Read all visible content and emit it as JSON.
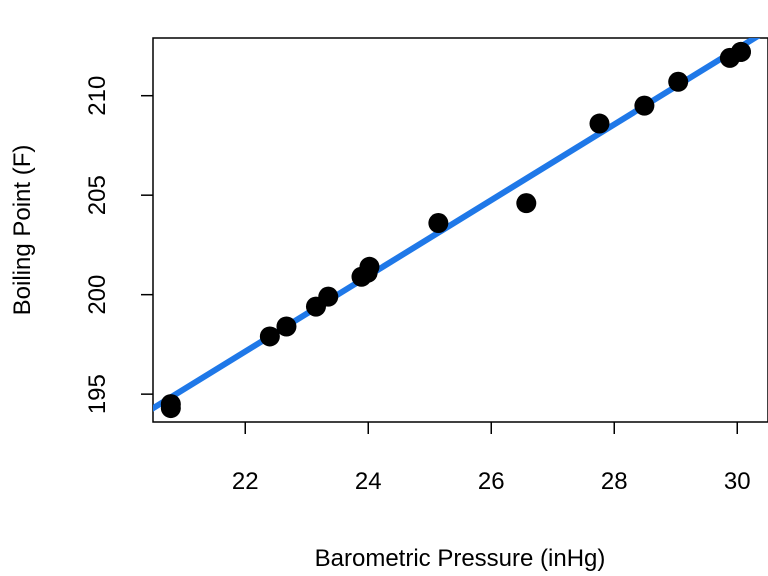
{
  "chart_data": {
    "type": "scatter",
    "title": "",
    "xlabel": "Barometric Pressure (inHg)",
    "ylabel": "Boiling Point (F)",
    "xlim": [
      20.5,
      30.5
    ],
    "ylim": [
      193.6,
      212.9
    ],
    "x_ticks": [
      22,
      24,
      26,
      28,
      30
    ],
    "y_ticks": [
      195,
      200,
      205,
      210
    ],
    "grid": false,
    "legend": "none",
    "point_color": "#000000",
    "fit_color": "#1f78e8",
    "series": [
      {
        "values": [
          {
            "x": 20.79,
            "y": 194.5
          },
          {
            "x": 20.79,
            "y": 194.3
          },
          {
            "x": 22.4,
            "y": 197.9
          },
          {
            "x": 22.67,
            "y": 198.4
          },
          {
            "x": 23.15,
            "y": 199.4
          },
          {
            "x": 23.35,
            "y": 199.9
          },
          {
            "x": 23.89,
            "y": 200.9
          },
          {
            "x": 23.99,
            "y": 201.1
          },
          {
            "x": 24.02,
            "y": 201.4
          },
          {
            "x": 25.14,
            "y": 203.6
          },
          {
            "x": 26.57,
            "y": 204.6
          },
          {
            "x": 27.76,
            "y": 208.6
          },
          {
            "x": 28.49,
            "y": 209.5
          },
          {
            "x": 29.04,
            "y": 210.7
          },
          {
            "x": 29.88,
            "y": 211.9
          },
          {
            "x": 30.06,
            "y": 212.2
          },
          {
            "x": 30.06,
            "y": 212.2
          }
        ]
      }
    ],
    "fit_line": {
      "intercept": 155.3,
      "slope": 1.902
    }
  }
}
